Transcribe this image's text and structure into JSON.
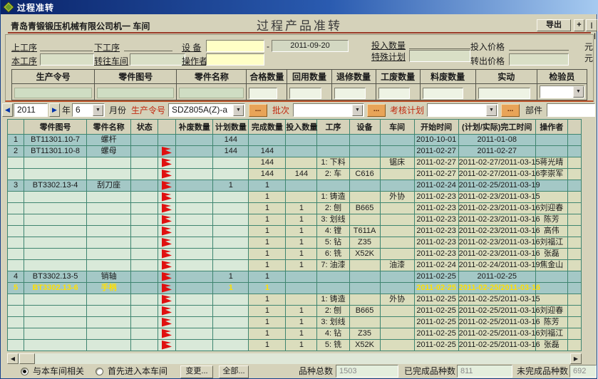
{
  "window": {
    "title": "过程准转"
  },
  "header": {
    "company": "青岛青锻锻压机械有限公司机一 车间",
    "title": "过程产品准转",
    "export_label": "导出",
    "add_label": "+",
    "collapse_label": "|—|"
  },
  "form": {
    "up_proc": "上工序",
    "down_proc": "下工序",
    "equip": "设 备",
    "cur_proc": "本工序",
    "to_shop": "转往车间",
    "operator": "操作者",
    "date_value": "2011-09-20",
    "dash": "-",
    "in_qty": "投入数量",
    "special_plan": "特殊计划",
    "in_price": "投入价格",
    "out_price": "转出价格",
    "yuan1": "元",
    "yuan2": "元"
  },
  "grid": {
    "headers": [
      "生产令号",
      "零件图号",
      "零件名称",
      "合格数量",
      "回用数量",
      "退修数量",
      "工废数量",
      "料废数量",
      "实动",
      "检验员"
    ]
  },
  "filter": {
    "prev": "◀",
    "next": "▶",
    "year": "2011",
    "year_label": "年",
    "month": "6",
    "month_label": "月份",
    "order_label": "生产令号",
    "order_value": "SDZ805A(Z)-a",
    "more1": "...",
    "batch_label": "批次",
    "more2": "...",
    "assess_label": "考核计划",
    "more3": "...",
    "part_label": "部件",
    "part_value": ""
  },
  "table": {
    "headers": [
      "",
      "零件图号",
      "零件名称",
      "状态",
      "",
      "补废数量",
      "计划数量",
      "完成数量",
      "投入数量",
      "工序",
      "设备",
      "车间",
      "开始时间",
      "(计划/实际)完工时间",
      "操作者",
      ""
    ],
    "rows": [
      {
        "type": "main",
        "selected": false,
        "num": "1",
        "part_no": "BT11301.10-7",
        "name": "螺杆",
        "flag": false,
        "makeup": "",
        "plan": "144",
        "done": "",
        "input": "",
        "proc": "",
        "equip": "",
        "shop": "",
        "start": "2010-10-01",
        "finish": "2011-01-08",
        "operator": ""
      },
      {
        "type": "main",
        "selected": false,
        "num": "2",
        "part_no": "BT11301.10-8",
        "name": "螺母",
        "flag": true,
        "makeup": "",
        "plan": "144",
        "done": "144",
        "input": "",
        "proc": "",
        "equip": "",
        "shop": "",
        "start": "2011-02-27",
        "finish": "2011-02-27",
        "operator": ""
      },
      {
        "type": "sub",
        "selected": false,
        "num": "",
        "part_no": "",
        "name": "",
        "flag": true,
        "makeup": "",
        "plan": "",
        "done": "144",
        "input": "",
        "proc": "1: 下料",
        "equip": "",
        "shop": "锯床",
        "start": "2011-02-27",
        "finish": "2011-02-27/2011-03-15",
        "operator": "蒋光晴"
      },
      {
        "type": "sub",
        "selected": false,
        "num": "",
        "part_no": "",
        "name": "",
        "flag": true,
        "makeup": "",
        "plan": "",
        "done": "144",
        "input": "144",
        "proc": "2: 车",
        "equip": "C616",
        "shop": "",
        "start": "2011-02-27",
        "finish": "2011-02-27/2011-03-16",
        "operator": "李崇军"
      },
      {
        "type": "main",
        "selected": false,
        "num": "3",
        "part_no": "BT3302.13-4",
        "name": "刮刀座",
        "flag": true,
        "makeup": "",
        "plan": "1",
        "done": "1",
        "input": "",
        "proc": "",
        "equip": "",
        "shop": "",
        "start": "2011-02-24",
        "finish": "2011-02-25/2011-03-19",
        "operator": ""
      },
      {
        "type": "sub",
        "selected": false,
        "num": "",
        "part_no": "",
        "name": "",
        "flag": true,
        "makeup": "",
        "plan": "",
        "done": "1",
        "input": "",
        "proc": "1: 铸造",
        "equip": "",
        "shop": "外协",
        "start": "2011-02-23",
        "finish": "2011-02-23/2011-03-15",
        "operator": ""
      },
      {
        "type": "sub",
        "selected": false,
        "num": "",
        "part_no": "",
        "name": "",
        "flag": true,
        "makeup": "",
        "plan": "",
        "done": "1",
        "input": "1",
        "proc": "2: 刨",
        "equip": "B665",
        "shop": "",
        "start": "2011-02-23",
        "finish": "2011-02-23/2011-03-16",
        "operator": "刘迎春"
      },
      {
        "type": "sub",
        "selected": false,
        "num": "",
        "part_no": "",
        "name": "",
        "flag": true,
        "makeup": "",
        "plan": "",
        "done": "1",
        "input": "1",
        "proc": "3: 划线",
        "equip": "",
        "shop": "",
        "start": "2011-02-23",
        "finish": "2011-02-23/2011-03-16",
        "operator": "陈芳"
      },
      {
        "type": "sub",
        "selected": false,
        "num": "",
        "part_no": "",
        "name": "",
        "flag": true,
        "makeup": "",
        "plan": "",
        "done": "1",
        "input": "1",
        "proc": "4: 镗",
        "equip": "T611A",
        "shop": "",
        "start": "2011-02-23",
        "finish": "2011-02-23/2011-03-16",
        "operator": "高伟"
      },
      {
        "type": "sub",
        "selected": false,
        "num": "",
        "part_no": "",
        "name": "",
        "flag": true,
        "makeup": "",
        "plan": "",
        "done": "1",
        "input": "1",
        "proc": "5: 钻",
        "equip": "Z35",
        "shop": "",
        "start": "2011-02-23",
        "finish": "2011-02-23/2011-03-16",
        "operator": "刘福江"
      },
      {
        "type": "sub",
        "selected": false,
        "num": "",
        "part_no": "",
        "name": "",
        "flag": true,
        "makeup": "",
        "plan": "",
        "done": "1",
        "input": "1",
        "proc": "6: 铣",
        "equip": "X52K",
        "shop": "",
        "start": "2011-02-23",
        "finish": "2011-02-23/2011-03-16",
        "operator": "张磊"
      },
      {
        "type": "sub",
        "selected": false,
        "num": "",
        "part_no": "",
        "name": "",
        "flag": true,
        "makeup": "",
        "plan": "",
        "done": "1",
        "input": "1",
        "proc": "7: 油漆",
        "equip": "",
        "shop": "油漆",
        "start": "2011-02-24",
        "finish": "2011-02-24/2011-03-19",
        "operator": "焦金山"
      },
      {
        "type": "main",
        "selected": false,
        "num": "4",
        "part_no": "BT3302.13-5",
        "name": "销轴",
        "flag": true,
        "makeup": "",
        "plan": "1",
        "done": "1",
        "input": "",
        "proc": "",
        "equip": "",
        "shop": "",
        "start": "2011-02-25",
        "finish": "2011-02-25",
        "operator": ""
      },
      {
        "type": "main",
        "selected": true,
        "num": "5",
        "part_no": "BT3302.13-6",
        "name": "手柄",
        "flag": true,
        "makeup": "",
        "plan": "1",
        "done": "1",
        "input": "",
        "proc": "",
        "equip": "",
        "shop": "",
        "start": "2011-02-25",
        "finish": "2011-02-25/2011-03-16",
        "operator": ""
      },
      {
        "type": "sub",
        "selected": false,
        "num": "",
        "part_no": "",
        "name": "",
        "flag": true,
        "makeup": "",
        "plan": "",
        "done": "1",
        "input": "",
        "proc": "1: 铸造",
        "equip": "",
        "shop": "外协",
        "start": "2011-02-25",
        "finish": "2011-02-25/2011-03-15",
        "operator": ""
      },
      {
        "type": "sub",
        "selected": false,
        "num": "",
        "part_no": "",
        "name": "",
        "flag": true,
        "makeup": "",
        "plan": "",
        "done": "1",
        "input": "1",
        "proc": "2: 刨",
        "equip": "B665",
        "shop": "",
        "start": "2011-02-25",
        "finish": "2011-02-25/2011-03-16",
        "operator": "刘迎春"
      },
      {
        "type": "sub",
        "selected": false,
        "num": "",
        "part_no": "",
        "name": "",
        "flag": true,
        "makeup": "",
        "plan": "",
        "done": "1",
        "input": "1",
        "proc": "3: 划线",
        "equip": "",
        "shop": "",
        "start": "2011-02-25",
        "finish": "2011-02-25/2011-03-16",
        "operator": "陈芳"
      },
      {
        "type": "sub",
        "selected": false,
        "num": "",
        "part_no": "",
        "name": "",
        "flag": true,
        "makeup": "",
        "plan": "",
        "done": "1",
        "input": "1",
        "proc": "4: 钻",
        "equip": "Z35",
        "shop": "",
        "start": "2011-02-25",
        "finish": "2011-02-25/2011-03-16",
        "operator": "刘福江"
      },
      {
        "type": "sub",
        "selected": false,
        "num": "",
        "part_no": "",
        "name": "",
        "flag": true,
        "makeup": "",
        "plan": "",
        "done": "1",
        "input": "1",
        "proc": "5: 铣",
        "equip": "X52K",
        "shop": "",
        "start": "2011-02-25",
        "finish": "2011-02-25/2011-03-16",
        "operator": "张磊"
      }
    ]
  },
  "footer": {
    "radio1": "与本车间相关",
    "radio2": "首先进入本车间",
    "change_label": "变更...",
    "all_label": "全部...",
    "total_label": "品种总数",
    "total_value": "1503",
    "done_label": "已完成品种数",
    "done_value": "811",
    "undone_label": "未完成品种数",
    "undone_value": "692"
  },
  "colors": {
    "flag": "#e01010",
    "label_red": "#c22a10",
    "row_main": "#a4c8c6",
    "row_sub": "#d9e9d9",
    "row_sub_alt": "#dbddbd",
    "selected_text": "#ffdf00",
    "input_yellow": "#ffffc6"
  }
}
